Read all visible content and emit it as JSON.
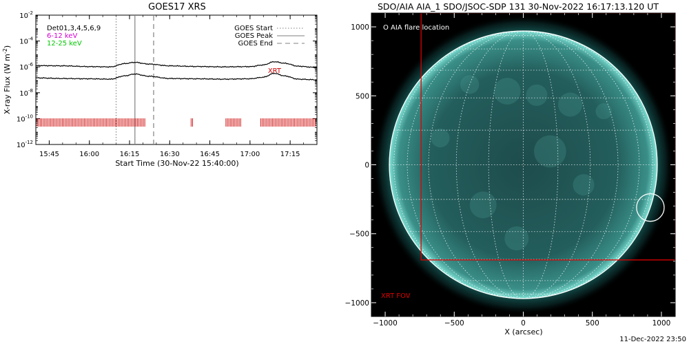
{
  "chart_data": [
    {
      "type": "line",
      "title": "GOES17 XRS",
      "xlabel": "Start Time (30-Nov-22 15:40:00)",
      "ylabel": "X-ray Flux (W m",
      "ylabel_sup": "-2",
      "ylabel_close": ")",
      "xlim": [
        "15:40",
        "17:25"
      ],
      "x_ticks": [
        "15:45",
        "16:00",
        "16:15",
        "16:30",
        "16:45",
        "17:00",
        "17:15"
      ],
      "ylim_log10": [
        -12,
        -2
      ],
      "y_ticks_log10": [
        -12,
        -10,
        -8,
        -6,
        -4,
        -2
      ],
      "y_tick_base": "10",
      "log_scale": true,
      "legend_left": [
        {
          "label": "Det01,3,4,5,6,9",
          "color": "#000000"
        },
        {
          "label": "6-12 keV",
          "color": "#d200d2"
        },
        {
          "label": "12-25 keV",
          "color": "#00c800"
        }
      ],
      "legend_right": [
        {
          "label": "GOES Start",
          "style": "dotted"
        },
        {
          "label": "GOES Peak",
          "style": "solid"
        },
        {
          "label": "GOES End",
          "style": "dashed"
        }
      ],
      "markers": {
        "goes_start": "16:10",
        "goes_peak": "16:17",
        "goes_end": "16:24"
      },
      "series": [
        {
          "color": "#000000",
          "x": [
            "15:40",
            "15:50",
            "16:00",
            "16:08",
            "16:13",
            "16:17",
            "16:22",
            "16:30",
            "16:40",
            "16:50",
            "17:00",
            "17:05",
            "17:09",
            "17:13",
            "17:18",
            "17:25"
          ],
          "log10_flux": [
            -5.9,
            -5.92,
            -5.98,
            -6.0,
            -5.75,
            -5.65,
            -5.78,
            -5.92,
            -5.97,
            -6.0,
            -5.98,
            -5.85,
            -5.6,
            -5.72,
            -5.95,
            -6.05
          ]
        },
        {
          "color": "#000000",
          "x": [
            "15:40",
            "15:50",
            "16:00",
            "16:08",
            "16:13",
            "16:17",
            "16:22",
            "16:30",
            "16:40",
            "16:50",
            "17:00",
            "17:05",
            "17:09",
            "17:13",
            "17:18",
            "17:25"
          ],
          "log10_flux": [
            -6.85,
            -6.9,
            -6.92,
            -6.95,
            -6.7,
            -6.55,
            -6.72,
            -6.9,
            -6.92,
            -6.95,
            -6.92,
            -6.8,
            -6.5,
            -6.7,
            -6.95,
            -7.0
          ]
        }
      ],
      "annotation": {
        "text": "XRT",
        "x": "17:09",
        "log10_y": -6.3,
        "color": "#cc0000"
      },
      "coverage": {
        "color": "#cc0000",
        "log10_y": -10.3,
        "intervals": [
          [
            "15:40",
            "16:21"
          ],
          [
            "16:38",
            "16:39"
          ],
          [
            "16:51",
            "16:57"
          ],
          [
            "17:04",
            "17:25"
          ]
        ]
      }
    },
    {
      "type": "image",
      "title": "SDO/AIA AIA_1 SDO/JSOC-SDP 131 30-Nov-2022 16:17:13.120 UT",
      "xlabel": "X (arcsec)",
      "xlim": [
        -1100,
        1100
      ],
      "ylim": [
        -1100,
        1100
      ],
      "x_ticks": [
        -1000,
        -500,
        0,
        500,
        1000
      ],
      "y_ticks": [
        -1000,
        -500,
        0,
        500,
        1000
      ],
      "x_tick_labels": [
        "−1000",
        "−500",
        "0",
        "500",
        "1000"
      ],
      "y_tick_labels": [
        "−1000",
        "−500",
        "0",
        "500",
        "1000"
      ],
      "solar_radius_arcsec": 970,
      "grid_spacing_deg": 15,
      "legend_text": "O AIA flare location",
      "flare_location": {
        "x": 920,
        "y": -310,
        "radius": 100
      },
      "xrt_fov": {
        "label": "XRT FOV",
        "color": "#e00000",
        "x0": -740,
        "x1": 1100,
        "y0": -690,
        "y1": 1100
      },
      "colors": {
        "disk": "#1f5d5c",
        "limb": "#7fe0d4",
        "grid": "#ffffff"
      }
    }
  ],
  "footer": {
    "timestamp": "11-Dec-2022 23:50"
  }
}
